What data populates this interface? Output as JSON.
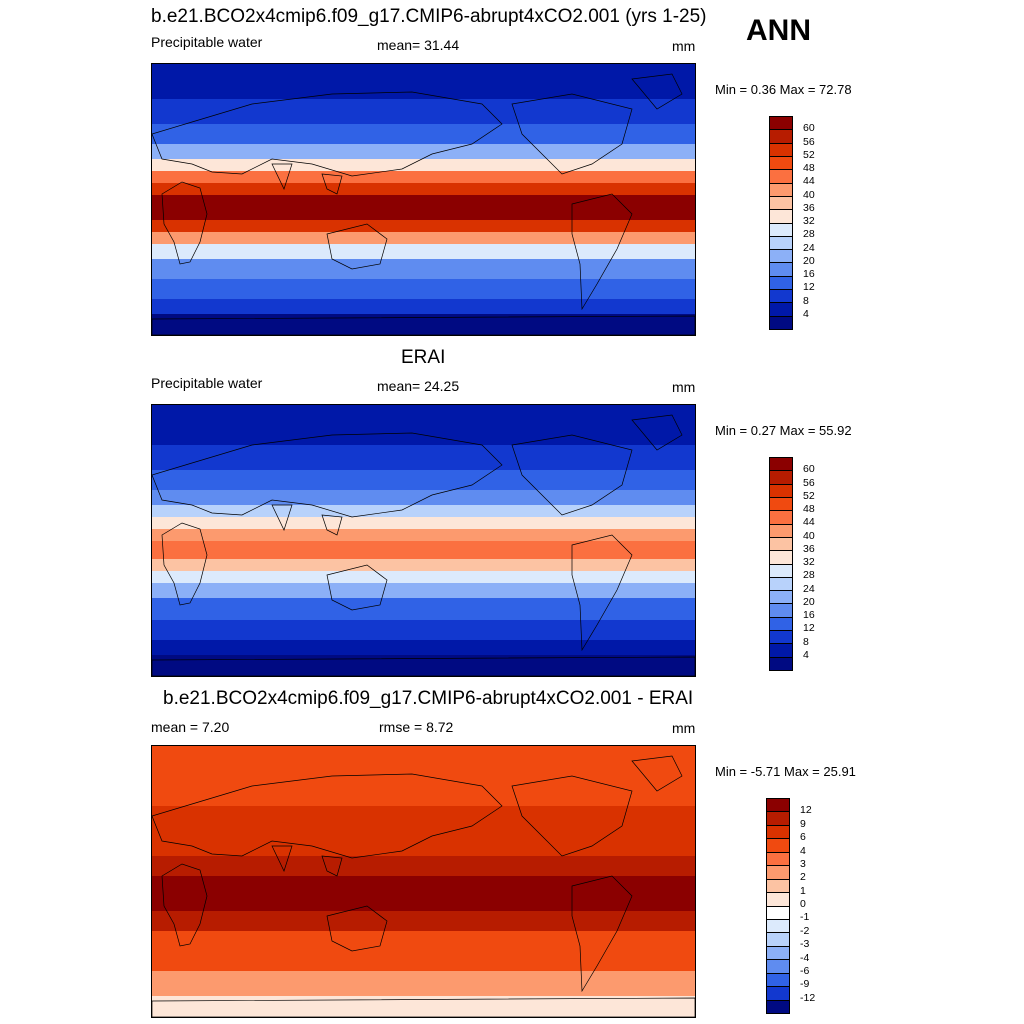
{
  "season": "ANN",
  "panels": [
    {
      "title": "b.e21.BCO2x4cmip6.f09_g17.CMIP6-abrupt4xCO2.001 (yrs 1-25)",
      "left_label": "Precipitable water",
      "center_label": "mean=  31.44",
      "right_label": "mm",
      "minmax": "Min =   0.36 Max =  72.78",
      "colorbar": {
        "levels": [
          "60",
          "56",
          "52",
          "48",
          "44",
          "40",
          "36",
          "32",
          "28",
          "24",
          "20",
          "16",
          "12",
          "8",
          "4"
        ],
        "colors": [
          "#8b0000",
          "#b71c00",
          "#d93200",
          "#f04a10",
          "#fb7040",
          "#fc9a6e",
          "#fcc3a3",
          "#fde6d8",
          "#dceafc",
          "#b8d2fb",
          "#8cb0f7",
          "#5f8cf0",
          "#3062e6",
          "#1238cf",
          "#0018a8",
          "#000a82"
        ]
      },
      "map": {
        "style": "model"
      }
    },
    {
      "title": "ERAI",
      "left_label": "Precipitable water",
      "center_label": "mean=  24.25",
      "right_label": "mm",
      "minmax": "Min =   0.27 Max =  55.92",
      "colorbar": {
        "levels": [
          "60",
          "56",
          "52",
          "48",
          "44",
          "40",
          "36",
          "32",
          "28",
          "24",
          "20",
          "16",
          "12",
          "8",
          "4"
        ],
        "colors": [
          "#8b0000",
          "#b71c00",
          "#d93200",
          "#f04a10",
          "#fb7040",
          "#fc9a6e",
          "#fcc3a3",
          "#fde6d8",
          "#dceafc",
          "#b8d2fb",
          "#8cb0f7",
          "#5f8cf0",
          "#3062e6",
          "#1238cf",
          "#0018a8",
          "#000a82"
        ]
      },
      "map": {
        "style": "obs"
      }
    },
    {
      "title": "b.e21.BCO2x4cmip6.f09_g17.CMIP6-abrupt4xCO2.001 - ERAI",
      "left_label": "mean =   7.20",
      "center_label": "rmse =   8.72",
      "right_label": "mm",
      "minmax": "Min =  -5.71 Max =  25.91",
      "colorbar": {
        "levels": [
          "12",
          "9",
          "6",
          "4",
          "3",
          "2",
          "1",
          "0",
          "-1",
          "-2",
          "-3",
          "-4",
          "-6",
          "-9",
          "-12"
        ],
        "colors": [
          "#8b0000",
          "#b71c00",
          "#d93200",
          "#f04a10",
          "#fb7040",
          "#fc9a6e",
          "#fcc3a3",
          "#fde6d8",
          "#ffffff",
          "#dceafc",
          "#b8d2fb",
          "#8cb0f7",
          "#5f8cf0",
          "#3062e6",
          "#1238cf",
          "#000a82"
        ]
      },
      "map": {
        "style": "diff"
      }
    }
  ]
}
